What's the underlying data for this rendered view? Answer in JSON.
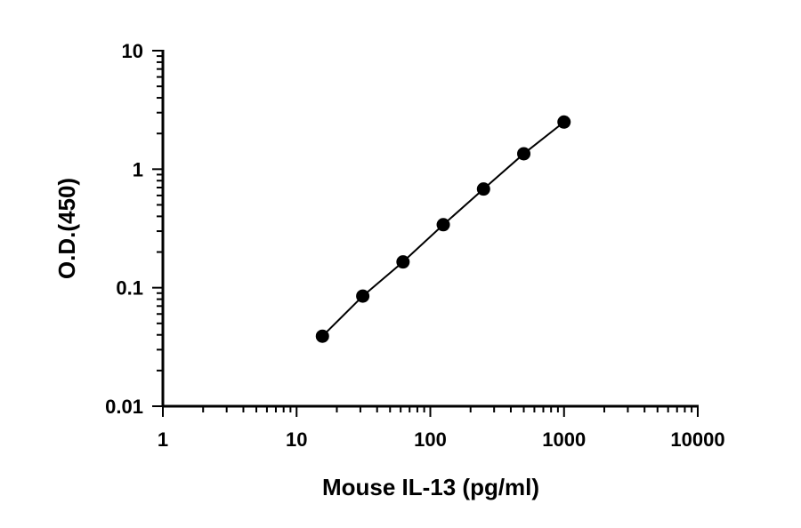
{
  "chart_data": {
    "type": "scatter",
    "title": "",
    "xlabel": "Mouse IL-13 (pg/ml)",
    "ylabel": "O.D.(450)",
    "x_scale": "log",
    "y_scale": "log",
    "xlim": [
      1,
      10000
    ],
    "ylim": [
      0.01,
      10
    ],
    "x_ticks": [
      "1",
      "10",
      "100",
      "1000",
      "10000"
    ],
    "y_ticks": [
      "0.01",
      "0.1",
      "1",
      "10"
    ],
    "grid": false,
    "legend": "none",
    "colors": {
      "points": "#000000",
      "line": "#000000",
      "axes": "#000000"
    },
    "series": [
      {
        "x": [
          15.6,
          31.25,
          62.5,
          125,
          250,
          500,
          1000
        ],
        "y": [
          0.039,
          0.085,
          0.165,
          0.34,
          0.68,
          1.35,
          2.5
        ]
      }
    ],
    "fit_line": true
  }
}
